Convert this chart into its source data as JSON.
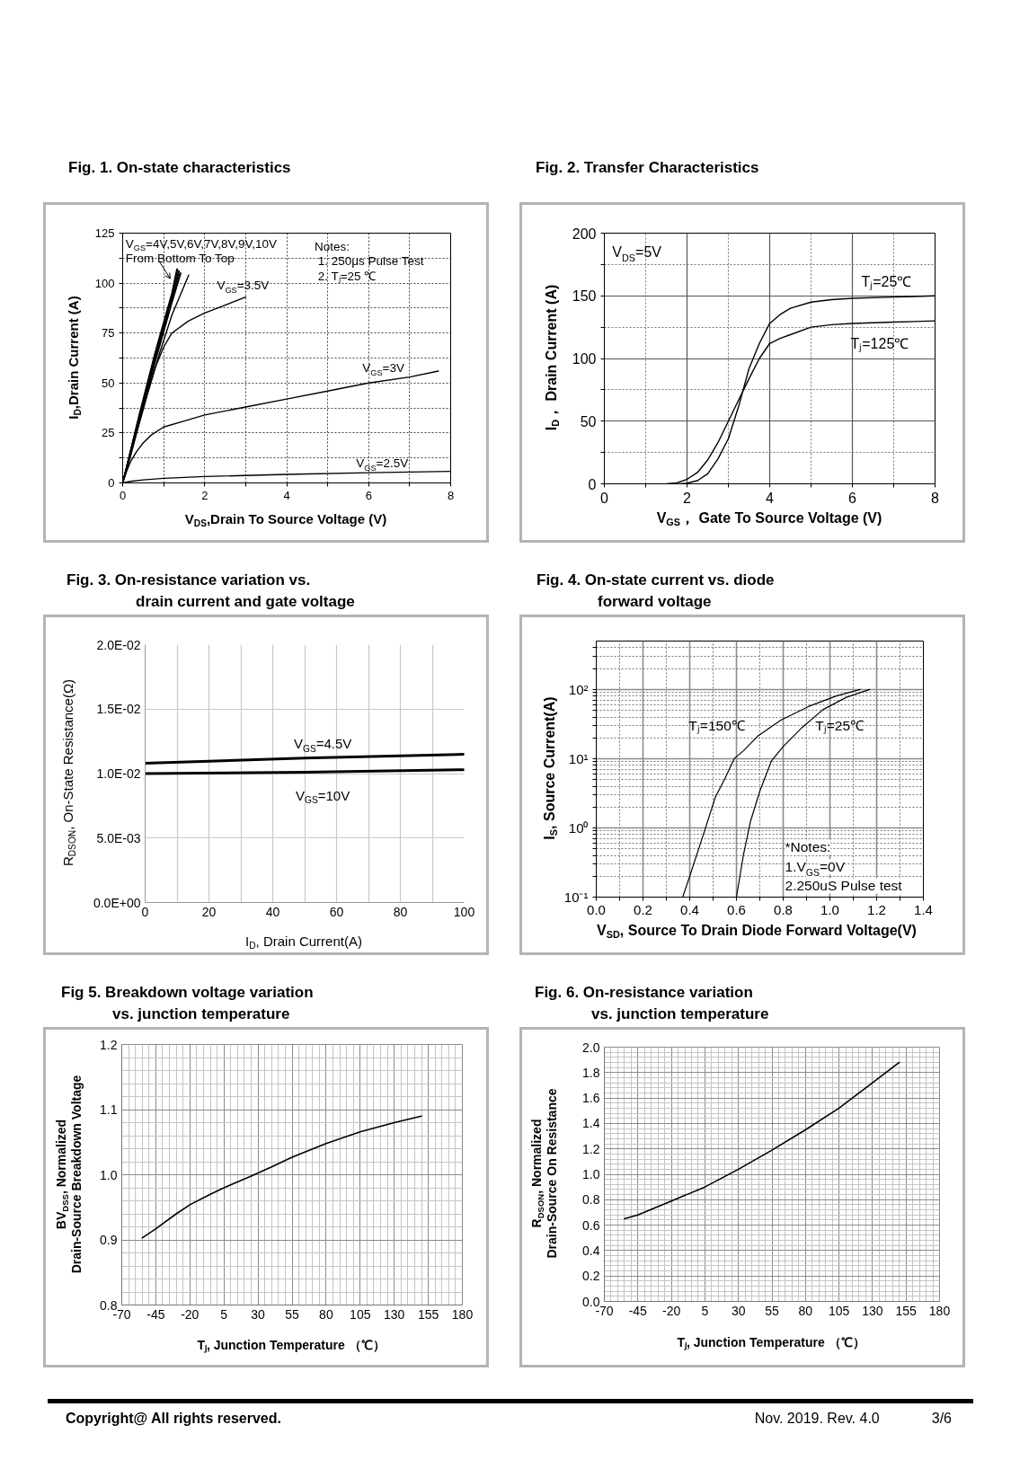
{
  "chart_data": [
    {
      "type": "line",
      "title": "Fig. 1. On-state characteristics",
      "xlabel": "V$_{DS}$,Drain To Source Voltage (V)",
      "ylabel": "I$_{D}$,Drain Current (A)",
      "xlim": [
        0,
        8
      ],
      "ylim": [
        0,
        125
      ],
      "xticks": [
        0,
        {
          "value": 1,
          "label": null
        },
        2,
        {
          "value": 3,
          "label": null
        },
        4,
        {
          "value": 5,
          "label": null
        },
        6,
        {
          "value": 7,
          "label": null
        },
        8
      ],
      "yticks": [
        0,
        {
          "value": 12.5,
          "label": null
        },
        25,
        {
          "value": 37.5,
          "label": null
        },
        50,
        {
          "value": 62.5,
          "label": null
        },
        75,
        {
          "value": 87.5,
          "label": null
        },
        100,
        {
          "value": 112.5,
          "label": null
        },
        125
      ],
      "grid": true,
      "annotations": [
        "V$_{GS}$=4V,5V,6V,7V,8V,9V,10V",
        "From Bottom To Top",
        "Notes:",
        "1. 250μs  Pulse Test",
        "2. Tⱼ=25 ℃"
      ],
      "series": [
        {
          "color": "#000000",
          "x": [
            0,
            0.3,
            0.6,
            0.9,
            1.2,
            1.61
          ],
          "values": [
            0,
            22,
            44,
            65,
            84,
            104
          ]
        },
        {
          "color": "#000000",
          "x": [
            0,
            0.4,
            0.8,
            1.2,
            1.42
          ],
          "values": [
            0,
            31,
            61,
            90,
            105
          ]
        },
        {
          "color": "#000000",
          "x": [
            0,
            0.4,
            0.8,
            1.2,
            1.4
          ],
          "values": [
            0,
            32,
            62,
            91,
            105
          ]
        },
        {
          "color": "#000000",
          "x": [
            0,
            0.4,
            0.8,
            1.2,
            1.38
          ],
          "values": [
            0,
            32,
            63,
            92,
            106
          ]
        },
        {
          "color": "#000000",
          "x": [
            0,
            0.4,
            0.8,
            1.2,
            1.36
          ],
          "values": [
            0,
            33,
            64,
            93,
            106
          ]
        },
        {
          "color": "#000000",
          "x": [
            0,
            0.4,
            0.8,
            1.2,
            1.34
          ],
          "values": [
            0,
            33,
            65,
            94,
            107
          ]
        },
        {
          "color": "#000000",
          "x": [
            0,
            0.4,
            0.8,
            1.2,
            1.32
          ],
          "values": [
            0,
            34,
            66,
            95,
            107
          ]
        },
        {
          "name": "V$_{GS}$=3.5V",
          "color": "#000000",
          "x": [
            0,
            0.2,
            0.4,
            0.6,
            0.8,
            1.0,
            1.2,
            1.6,
            2.0,
            2.5,
            3.0
          ],
          "values": [
            0,
            14,
            30,
            45,
            58,
            68,
            75,
            81,
            85,
            89,
            93
          ]
        },
        {
          "name": "V$_{GS}$=3V",
          "color": "#000000",
          "x": [
            0,
            0.1,
            0.2,
            0.35,
            0.5,
            0.7,
            1,
            1.5,
            2,
            3,
            4,
            5,
            6,
            7,
            7.7
          ],
          "values": [
            0,
            6,
            11,
            16,
            20,
            24,
            28,
            31,
            34,
            38,
            42,
            46,
            50,
            53,
            56
          ]
        },
        {
          "name": "V$_{GS}$=2.5V",
          "color": "#000000",
          "x": [
            0,
            0.2,
            0.5,
            1,
            2,
            4,
            6,
            8
          ],
          "values": [
            0,
            0.8,
            1.5,
            2.3,
            3.2,
            4.3,
            5.1,
            5.8
          ]
        }
      ]
    },
    {
      "type": "line",
      "title": "Fig. 2. Transfer Characteristics",
      "xlabel": "V$_{GS}$， Gate To Source Voltage (V)",
      "ylabel": "I$_{D}$， Drain Current (A)",
      "xlim": [
        0,
        8
      ],
      "ylim": [
        0,
        200
      ],
      "xticks": [
        0,
        {
          "value": 1,
          "label": null
        },
        2,
        {
          "value": 3,
          "label": null
        },
        4,
        {
          "value": 5,
          "label": null
        },
        6,
        {
          "value": 7,
          "label": null
        },
        8
      ],
      "yticks": [
        0,
        {
          "value": 25,
          "label": null
        },
        50,
        {
          "value": 75,
          "label": null
        },
        100,
        {
          "value": 125,
          "label": null
        },
        150,
        {
          "value": 175,
          "label": null
        },
        200
      ],
      "grid": true,
      "annotations": [
        "V$_{DS}$=5V"
      ],
      "series": [
        {
          "name": "Tⱼ=25℃",
          "color": "#000000",
          "x": [
            1.8,
            2,
            2.25,
            2.5,
            2.75,
            3,
            3.25,
            3.5,
            3.75,
            4,
            4.25,
            4.5,
            5,
            5.5,
            6,
            7,
            8
          ],
          "values": [
            0,
            0.5,
            2.5,
            8,
            20,
            36,
            62,
            92,
            112,
            128,
            135,
            140,
            145,
            147,
            148,
            149,
            150
          ]
        },
        {
          "name": "Tⱼ=125℃",
          "color": "#000000",
          "x": [
            1.5,
            1.75,
            2,
            2.25,
            2.5,
            2.75,
            3,
            3.25,
            3.5,
            3.75,
            4,
            4.25,
            4.5,
            5,
            5.5,
            6,
            7,
            8
          ],
          "values": [
            0,
            0.8,
            3.6,
            9,
            19,
            33,
            50,
            67,
            84,
            100,
            112,
            116,
            119,
            125,
            127,
            128,
            129,
            130
          ]
        }
      ]
    },
    {
      "type": "line",
      "title": "Fig. 3. On-resistance variation vs.\ndrain current and gate voltage",
      "xlabel": "I$_{D}$, Drain Current(A)",
      "ylabel": "R$_{DSON}$, On-State Resistance(Ω)",
      "xlim": [
        0,
        100
      ],
      "ylim": [
        0,
        0.02
      ],
      "xticks": [
        0,
        {
          "value": 10,
          "label": null
        },
        20,
        {
          "value": 30,
          "label": null
        },
        40,
        {
          "value": 50,
          "label": null
        },
        60,
        {
          "value": 70,
          "label": null
        },
        80,
        {
          "value": 90,
          "label": null
        },
        100
      ],
      "yticks": [
        {
          "value": 0,
          "label": "0.0E+00"
        },
        {
          "value": 0.005,
          "label": "5.0E-03"
        },
        {
          "value": 0.01,
          "label": "1.0E-02"
        },
        {
          "value": 0.015,
          "label": "1.5E-02"
        },
        {
          "value": 0.02,
          "label": "2.0E-02"
        }
      ],
      "grid": true,
      "series": [
        {
          "name": "V$_{GS}$=4.5V",
          "color": "#000000",
          "x": [
            0,
            50,
            100
          ],
          "values": [
            0.0108,
            0.0112,
            0.0115
          ]
        },
        {
          "name": "V$_{GS}$=10V",
          "color": "#000000",
          "x": [
            0,
            50,
            100
          ],
          "values": [
            0.01,
            0.0101,
            0.0103
          ]
        }
      ]
    },
    {
      "type": "line",
      "title": "Fig. 4. On-state current vs. diode\nforward voltage",
      "xlabel": "V$_{SD}$, Source To Drain Diode Forward Voltage(V)",
      "ylabel": "I$_{S}$, Source Current(A)",
      "log": "y",
      "xlim": [
        0,
        1.4
      ],
      "ylim": [
        0.1,
        500
      ],
      "xticks": [
        {
          "value": 0,
          "label": "0.0"
        },
        {
          "value": 0.1,
          "label": null
        },
        0.2,
        {
          "value": 0.3,
          "label": null
        },
        0.4,
        {
          "value": 0.5,
          "label": null
        },
        0.6,
        {
          "value": 0.7,
          "label": null
        },
        0.8,
        {
          "value": 0.9,
          "label": null
        },
        {
          "value": 1,
          "label": "1.0"
        },
        {
          "value": 1.1,
          "label": null
        },
        1.2,
        {
          "value": 1.3,
          "label": null
        },
        1.4
      ],
      "yticks": [
        {
          "value": 0.1,
          "label": "10⁻¹"
        },
        {
          "value": 0.2,
          "label": null
        },
        {
          "value": 0.3,
          "label": null
        },
        {
          "value": 0.4,
          "label": null
        },
        {
          "value": 0.5,
          "label": null
        },
        {
          "value": 0.6,
          "label": null
        },
        {
          "value": 0.7,
          "label": null
        },
        {
          "value": 0.8,
          "label": null
        },
        {
          "value": 0.9,
          "label": null
        },
        {
          "value": 1,
          "label": "10⁰"
        },
        {
          "value": 2,
          "label": null
        },
        {
          "value": 3,
          "label": null
        },
        {
          "value": 4,
          "label": null
        },
        {
          "value": 5,
          "label": null
        },
        {
          "value": 6,
          "label": null
        },
        {
          "value": 7,
          "label": null
        },
        {
          "value": 8,
          "label": null
        },
        {
          "value": 9,
          "label": null
        },
        {
          "value": 10,
          "label": "10¹"
        },
        {
          "value": 20,
          "label": null
        },
        {
          "value": 30,
          "label": null
        },
        {
          "value": 40,
          "label": null
        },
        {
          "value": 50,
          "label": null
        },
        {
          "value": 60,
          "label": null
        },
        {
          "value": 70,
          "label": null
        },
        {
          "value": 80,
          "label": null
        },
        {
          "value": 90,
          "label": null
        },
        {
          "value": 100,
          "label": "10²"
        },
        {
          "value": 200,
          "label": null
        },
        {
          "value": 300,
          "label": null
        },
        {
          "value": 400,
          "label": null
        }
      ],
      "grid": true,
      "annotations": [
        "*Notes:",
        "1.V$_{GS}$=0V",
        "2.250uS Pulse test"
      ],
      "series": [
        {
          "name": "Tⱼ=150℃",
          "color": "#000000",
          "x": [
            0.37,
            0.4,
            0.46,
            0.51,
            0.55,
            0.59,
            0.63,
            0.69,
            0.79,
            0.91,
            1.03,
            1.13
          ],
          "values": [
            0.1,
            0.2,
            0.83,
            2.8,
            5.1,
            10,
            13,
            21,
            36,
            57,
            81,
            100
          ]
        },
        {
          "name": "Tⱼ=25℃",
          "color": "#000000",
          "x": [
            0.6,
            0.63,
            0.66,
            0.7,
            0.75,
            0.8,
            0.88,
            0.97,
            1.07,
            1.17
          ],
          "values": [
            0.1,
            0.41,
            1.24,
            3.4,
            9.3,
            15,
            28,
            51,
            77,
            100
          ]
        }
      ]
    },
    {
      "type": "line",
      "title": "Fig 5. Breakdown voltage variation\nvs. junction temperature",
      "xlabel": "Tⱼ, Junction Temperature （℃）",
      "ylabel": "BV$_{DSS}$, Normalized\nDrain-Source Breakdown Voltage",
      "xlim": [
        -70,
        180
      ],
      "ylim": [
        0.8,
        1.2
      ],
      "xticks": [
        -70,
        {
          "value": -65,
          "label": null
        },
        {
          "value": -60,
          "label": null
        },
        {
          "value": -55,
          "label": null
        },
        {
          "value": -50,
          "label": null
        },
        -45,
        {
          "value": -40,
          "label": null
        },
        {
          "value": -35,
          "label": null
        },
        {
          "value": -30,
          "label": null
        },
        {
          "value": -25,
          "label": null
        },
        -20,
        {
          "value": -15,
          "label": null
        },
        {
          "value": -10,
          "label": null
        },
        {
          "value": -5,
          "label": null
        },
        {
          "value": 0,
          "label": null
        },
        5,
        {
          "value": 10,
          "label": null
        },
        {
          "value": 15,
          "label": null
        },
        {
          "value": 20,
          "label": null
        },
        {
          "value": 25,
          "label": null
        },
        30,
        {
          "value": 35,
          "label": null
        },
        {
          "value": 40,
          "label": null
        },
        {
          "value": 45,
          "label": null
        },
        {
          "value": 50,
          "label": null
        },
        55,
        {
          "value": 60,
          "label": null
        },
        {
          "value": 65,
          "label": null
        },
        {
          "value": 70,
          "label": null
        },
        {
          "value": 75,
          "label": null
        },
        80,
        {
          "value": 85,
          "label": null
        },
        {
          "value": 90,
          "label": null
        },
        {
          "value": 95,
          "label": null
        },
        {
          "value": 100,
          "label": null
        },
        105,
        {
          "value": 110,
          "label": null
        },
        {
          "value": 115,
          "label": null
        },
        {
          "value": 120,
          "label": null
        },
        {
          "value": 125,
          "label": null
        },
        130,
        {
          "value": 135,
          "label": null
        },
        {
          "value": 140,
          "label": null
        },
        {
          "value": 145,
          "label": null
        },
        {
          "value": 150,
          "label": null
        },
        155,
        {
          "value": 160,
          "label": null
        },
        {
          "value": 165,
          "label": null
        },
        {
          "value": 170,
          "label": null
        },
        {
          "value": 175,
          "label": null
        },
        180
      ],
      "yticks": [
        0.8,
        {
          "value": 0.82,
          "label": null
        },
        {
          "value": 0.84,
          "label": null
        },
        {
          "value": 0.86,
          "label": null
        },
        {
          "value": 0.88,
          "label": null
        },
        0.9,
        {
          "value": 0.92,
          "label": null
        },
        {
          "value": 0.94,
          "label": null
        },
        {
          "value": 0.96,
          "label": null
        },
        {
          "value": 0.98,
          "label": null
        },
        {
          "value": 1,
          "label": "1.0"
        },
        {
          "value": 1.02,
          "label": null
        },
        {
          "value": 1.04,
          "label": null
        },
        {
          "value": 1.06,
          "label": null
        },
        {
          "value": 1.08,
          "label": null
        },
        1.1,
        {
          "value": 1.12,
          "label": null
        },
        {
          "value": 1.14,
          "label": null
        },
        {
          "value": 1.16,
          "label": null
        },
        {
          "value": 1.18,
          "label": null
        },
        1.2
      ],
      "grid": true,
      "series": [
        {
          "color": "#000000",
          "x": [
            -55,
            -45,
            -30,
            -20,
            -5,
            5,
            25,
            40,
            55,
            80,
            105,
            130,
            150
          ],
          "values": [
            0.903,
            0.917,
            0.94,
            0.954,
            0.97,
            0.98,
            0.998,
            1.012,
            1.027,
            1.048,
            1.066,
            1.08,
            1.09
          ]
        }
      ]
    },
    {
      "type": "line",
      "title": "Fig. 6. On-resistance variation\nvs. junction temperature",
      "xlabel": "Tⱼ, Junction Temperature （℃）",
      "ylabel": "R$_{DSON}$, Normalized\nDrain-Source On Resistance",
      "xlim": [
        -70,
        180
      ],
      "ylim": [
        0,
        2
      ],
      "xticks": [
        -70,
        {
          "value": -65,
          "label": null
        },
        {
          "value": -60,
          "label": null
        },
        {
          "value": -55,
          "label": null
        },
        {
          "value": -50,
          "label": null
        },
        -45,
        {
          "value": -40,
          "label": null
        },
        {
          "value": -35,
          "label": null
        },
        {
          "value": -30,
          "label": null
        },
        {
          "value": -25,
          "label": null
        },
        -20,
        {
          "value": -15,
          "label": null
        },
        {
          "value": -10,
          "label": null
        },
        {
          "value": -5,
          "label": null
        },
        {
          "value": 0,
          "label": null
        },
        5,
        {
          "value": 10,
          "label": null
        },
        {
          "value": 15,
          "label": null
        },
        {
          "value": 20,
          "label": null
        },
        {
          "value": 25,
          "label": null
        },
        30,
        {
          "value": 35,
          "label": null
        },
        {
          "value": 40,
          "label": null
        },
        {
          "value": 45,
          "label": null
        },
        {
          "value": 50,
          "label": null
        },
        55,
        {
          "value": 60,
          "label": null
        },
        {
          "value": 65,
          "label": null
        },
        {
          "value": 70,
          "label": null
        },
        {
          "value": 75,
          "label": null
        },
        80,
        {
          "value": 85,
          "label": null
        },
        {
          "value": 90,
          "label": null
        },
        {
          "value": 95,
          "label": null
        },
        {
          "value": 100,
          "label": null
        },
        105,
        {
          "value": 110,
          "label": null
        },
        {
          "value": 115,
          "label": null
        },
        {
          "value": 120,
          "label": null
        },
        {
          "value": 125,
          "label": null
        },
        130,
        {
          "value": 135,
          "label": null
        },
        {
          "value": 140,
          "label": null
        },
        {
          "value": 145,
          "label": null
        },
        {
          "value": 150,
          "label": null
        },
        155,
        {
          "value": 160,
          "label": null
        },
        {
          "value": 165,
          "label": null
        },
        {
          "value": 170,
          "label": null
        },
        {
          "value": 175,
          "label": null
        },
        180
      ],
      "yticks": [
        {
          "value": 0,
          "label": "0.0"
        },
        {
          "value": 0.04,
          "label": null
        },
        {
          "value": 0.08,
          "label": null
        },
        {
          "value": 0.12,
          "label": null
        },
        {
          "value": 0.16,
          "label": null
        },
        0.2,
        {
          "value": 0.24,
          "label": null
        },
        {
          "value": 0.28,
          "label": null
        },
        {
          "value": 0.32,
          "label": null
        },
        {
          "value": 0.36,
          "label": null
        },
        0.4,
        {
          "value": 0.44,
          "label": null
        },
        {
          "value": 0.48,
          "label": null
        },
        {
          "value": 0.52,
          "label": null
        },
        {
          "value": 0.56,
          "label": null
        },
        0.6,
        {
          "value": 0.64,
          "label": null
        },
        {
          "value": 0.68,
          "label": null
        },
        {
          "value": 0.72,
          "label": null
        },
        {
          "value": 0.76,
          "label": null
        },
        0.8,
        {
          "value": 0.84,
          "label": null
        },
        {
          "value": 0.88,
          "label": null
        },
        {
          "value": 0.92,
          "label": null
        },
        {
          "value": 0.96,
          "label": null
        },
        {
          "value": 1,
          "label": "1.0"
        },
        {
          "value": 1.04,
          "label": null
        },
        {
          "value": 1.08,
          "label": null
        },
        {
          "value": 1.12,
          "label": null
        },
        {
          "value": 1.16,
          "label": null
        },
        1.2,
        {
          "value": 1.24,
          "label": null
        },
        {
          "value": 1.28,
          "label": null
        },
        {
          "value": 1.32,
          "label": null
        },
        {
          "value": 1.36,
          "label": null
        },
        1.4,
        {
          "value": 1.44,
          "label": null
        },
        {
          "value": 1.48,
          "label": null
        },
        {
          "value": 1.52,
          "label": null
        },
        {
          "value": 1.56,
          "label": null
        },
        1.6,
        {
          "value": 1.64,
          "label": null
        },
        {
          "value": 1.68,
          "label": null
        },
        {
          "value": 1.72,
          "label": null
        },
        {
          "value": 1.76,
          "label": null
        },
        1.8,
        {
          "value": 1.84,
          "label": null
        },
        {
          "value": 1.88,
          "label": null
        },
        {
          "value": 1.92,
          "label": null
        },
        {
          "value": 1.96,
          "label": null
        },
        {
          "value": 2,
          "label": "2.0"
        }
      ],
      "grid": true,
      "series": [
        {
          "color": "#000000",
          "x": [
            -55,
            -45,
            -20,
            5,
            30,
            55,
            80,
            105,
            130,
            150
          ],
          "values": [
            0.65,
            0.68,
            0.79,
            0.9,
            1.04,
            1.19,
            1.35,
            1.52,
            1.72,
            1.88
          ]
        }
      ]
    },
    {
      "type": "other",
      "annotations": [
        "Copyright@ All rights reserved.",
        "Nov. 2019. Rev. 4.0",
        "3/6"
      ]
    }
  ]
}
